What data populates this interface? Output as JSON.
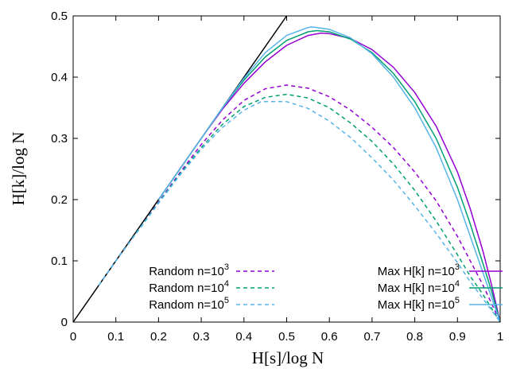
{
  "chart_data": {
    "type": "line",
    "xlabel": "H[s]/log N",
    "ylabel": "H[k]/log N",
    "xlim": [
      0,
      1
    ],
    "ylim": [
      0,
      0.5
    ],
    "x_ticks": [
      "0",
      "0.1",
      "0.2",
      "0.3",
      "0.4",
      "0.5",
      "0.6",
      "0.7",
      "0.8",
      "0.9",
      "1"
    ],
    "y_ticks": [
      "0",
      "0.1",
      "0.2",
      "0.3",
      "0.4",
      "0.5"
    ],
    "grid": false,
    "legend_position": "bottom",
    "reference_line": {
      "x": [
        0,
        0.5
      ],
      "y": [
        0,
        0.5
      ],
      "color": "#000000"
    },
    "series": [
      {
        "name": "Random n=10^3",
        "legend_main": "Random n=10",
        "legend_exp": "3",
        "style": "dashed",
        "color": "#9400d3",
        "x": [
          0.06,
          0.1,
          0.15,
          0.2,
          0.25,
          0.3,
          0.35,
          0.4,
          0.45,
          0.5,
          0.55,
          0.6,
          0.65,
          0.7,
          0.75,
          0.8,
          0.85,
          0.9,
          0.93,
          0.96,
          0.98,
          1.0
        ],
        "y": [
          0.06,
          0.1,
          0.148,
          0.196,
          0.244,
          0.29,
          0.33,
          0.362,
          0.381,
          0.387,
          0.382,
          0.368,
          0.346,
          0.318,
          0.285,
          0.245,
          0.198,
          0.14,
          0.1,
          0.06,
          0.03,
          0.0
        ]
      },
      {
        "name": "Random n=10^4",
        "legend_main": "Random n=10",
        "legend_exp": "4",
        "style": "dashed",
        "color": "#009e73",
        "x": [
          0.06,
          0.1,
          0.15,
          0.2,
          0.25,
          0.3,
          0.35,
          0.4,
          0.45,
          0.5,
          0.55,
          0.6,
          0.65,
          0.7,
          0.75,
          0.8,
          0.85,
          0.9,
          0.93,
          0.96,
          0.98,
          1.0
        ],
        "y": [
          0.06,
          0.1,
          0.148,
          0.195,
          0.242,
          0.285,
          0.323,
          0.352,
          0.367,
          0.372,
          0.366,
          0.35,
          0.325,
          0.295,
          0.258,
          0.215,
          0.165,
          0.11,
          0.075,
          0.045,
          0.022,
          0.0
        ]
      },
      {
        "name": "Random n=10^5",
        "legend_main": "Random n=10",
        "legend_exp": "5",
        "style": "dashed",
        "color": "#56b4e9",
        "x": [
          0.06,
          0.1,
          0.15,
          0.2,
          0.25,
          0.3,
          0.35,
          0.4,
          0.44,
          0.5,
          0.55,
          0.6,
          0.65,
          0.7,
          0.75,
          0.8,
          0.85,
          0.9,
          0.93,
          0.96,
          0.98,
          1.0
        ],
        "y": [
          0.06,
          0.1,
          0.147,
          0.194,
          0.24,
          0.282,
          0.318,
          0.346,
          0.36,
          0.36,
          0.349,
          0.328,
          0.301,
          0.268,
          0.232,
          0.19,
          0.145,
          0.097,
          0.066,
          0.038,
          0.019,
          0.0
        ]
      },
      {
        "name": "Max H[k] n=10^3",
        "legend_main": "Max H[k] n=10",
        "legend_exp": "3",
        "style": "solid",
        "color": "#9400d3",
        "x": [
          0.2,
          0.25,
          0.3,
          0.35,
          0.4,
          0.45,
          0.5,
          0.55,
          0.58,
          0.6,
          0.65,
          0.7,
          0.75,
          0.8,
          0.85,
          0.9,
          0.93,
          0.96,
          0.98,
          1.0
        ],
        "y": [
          0.2,
          0.25,
          0.3,
          0.348,
          0.39,
          0.425,
          0.452,
          0.468,
          0.472,
          0.471,
          0.463,
          0.445,
          0.416,
          0.375,
          0.32,
          0.245,
          0.185,
          0.115,
          0.06,
          0.0
        ]
      },
      {
        "name": "Max H[k] n=10^4",
        "legend_main": "Max H[k] n=10",
        "legend_exp": "4",
        "style": "solid",
        "color": "#009e73",
        "x": [
          0.2,
          0.25,
          0.3,
          0.35,
          0.4,
          0.45,
          0.5,
          0.55,
          0.57,
          0.6,
          0.65,
          0.7,
          0.75,
          0.8,
          0.85,
          0.9,
          0.93,
          0.96,
          0.98,
          1.0
        ],
        "y": [
          0.2,
          0.25,
          0.3,
          0.35,
          0.395,
          0.433,
          0.46,
          0.474,
          0.476,
          0.474,
          0.462,
          0.44,
          0.406,
          0.36,
          0.3,
          0.22,
          0.16,
          0.095,
          0.05,
          0.0
        ]
      },
      {
        "name": "Max H[k] n=10^5",
        "legend_main": "Max H[k] n=10",
        "legend_exp": "5",
        "style": "solid",
        "color": "#56b4e9",
        "x": [
          0.2,
          0.25,
          0.3,
          0.35,
          0.4,
          0.45,
          0.5,
          0.55,
          0.56,
          0.6,
          0.65,
          0.7,
          0.75,
          0.8,
          0.85,
          0.9,
          0.93,
          0.96,
          0.98,
          1.0
        ],
        "y": [
          0.2,
          0.25,
          0.3,
          0.35,
          0.398,
          0.44,
          0.468,
          0.481,
          0.482,
          0.478,
          0.464,
          0.438,
          0.4,
          0.35,
          0.285,
          0.2,
          0.14,
          0.08,
          0.04,
          0.0
        ]
      }
    ]
  }
}
